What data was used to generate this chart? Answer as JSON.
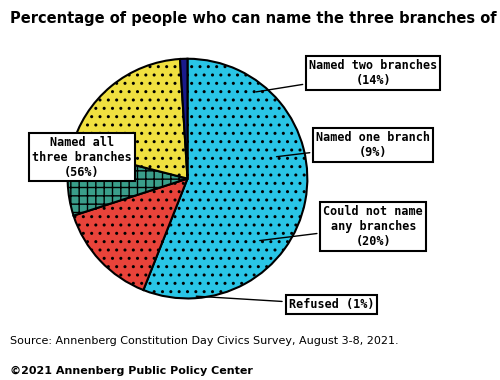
{
  "title": "Percentage of people who can name the three branches of government",
  "slices": [
    {
      "label": "Named all\nthree branches\n(56%)",
      "value": 56,
      "color": "#29C5E6",
      "hatch": ".."
    },
    {
      "label": "Named two branches\n(14%)",
      "value": 14,
      "color": "#E8433A",
      "hatch": ".."
    },
    {
      "label": "Named one branch\n(9%)",
      "value": 9,
      "color": "#3A9E8A",
      "hatch": "++"
    },
    {
      "label": "Could not name\nany branches\n(20%)",
      "value": 20,
      "color": "#F0E040",
      "hatch": ".."
    },
    {
      "label": "Refused (1%)",
      "value": 1,
      "color": "#1A1A8C",
      "hatch": ""
    }
  ],
  "source_text": "Source: Annenberg Constitution Day Civics Survey, August 3-8, 2021.",
  "copyright_text": "©2021 Annenberg Public Policy Center",
  "background_color": "#ffffff",
  "title_fontsize": 10.5,
  "label_fontsize": 8.5,
  "source_fontsize": 8
}
